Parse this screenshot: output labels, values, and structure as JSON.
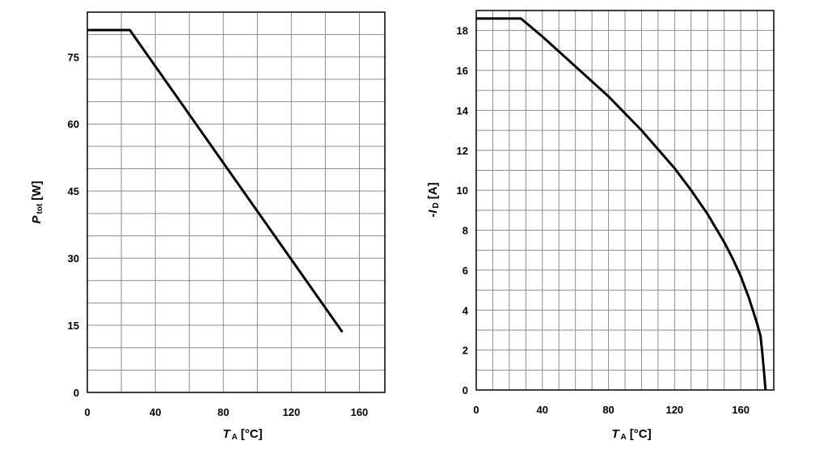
{
  "chart_data": [
    {
      "type": "line",
      "xlabel": {
        "symbol": "T",
        "subscript": "A",
        "unit": "[°C]"
      },
      "ylabel": {
        "symbol": "P",
        "subscript": "tot",
        "unit": "[W]"
      },
      "xlim": [
        0,
        175
      ],
      "ylim": [
        0,
        85
      ],
      "x_major_ticks": [
        0,
        40,
        80,
        120,
        160
      ],
      "x_minor_step": 20,
      "y_major_ticks": [
        0,
        15,
        30,
        45,
        60,
        75
      ],
      "y_minor_step": 5,
      "grid": true,
      "series": [
        {
          "x": [
            0,
            25,
            150
          ],
          "y": [
            81,
            81,
            13.5
          ]
        }
      ]
    },
    {
      "type": "line",
      "xlabel": {
        "symbol": "T",
        "subscript": "A",
        "unit": "[°C]"
      },
      "ylabel": {
        "prefix": "-",
        "symbol": "I",
        "subscript": "D",
        "unit": "[A]"
      },
      "xlim": [
        0,
        180
      ],
      "ylim": [
        0,
        19
      ],
      "x_major_ticks": [
        0,
        40,
        80,
        120,
        160
      ],
      "x_minor_step": 10,
      "y_major_ticks": [
        0,
        2,
        4,
        6,
        8,
        10,
        12,
        14,
        16,
        18
      ],
      "y_minor_step": 1,
      "grid": true,
      "series": [
        {
          "x": [
            0,
            27,
            40,
            60,
            80,
            100,
            120,
            130,
            140,
            150,
            155,
            160,
            165,
            170,
            172,
            173,
            174,
            175
          ],
          "y": [
            18.6,
            18.6,
            17.7,
            16.2,
            14.7,
            13.0,
            11.1,
            10.0,
            8.8,
            7.4,
            6.6,
            5.7,
            4.6,
            3.3,
            2.7,
            1.9,
            1.0,
            0
          ]
        }
      ]
    }
  ]
}
